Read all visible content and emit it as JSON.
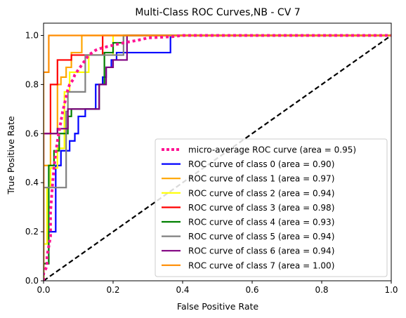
{
  "chart_data": {
    "type": "line",
    "title": "Multi-Class ROC Curves,NB - CV 7",
    "xlabel": "False Positive Rate",
    "ylabel": "True Positive Rate",
    "xlim": [
      0.0,
      1.0
    ],
    "ylim": [
      0.0,
      1.05
    ],
    "xticks": [
      "0.0",
      "0.2",
      "0.4",
      "0.6",
      "0.8",
      "1.0"
    ],
    "yticks": [
      "0.0",
      "0.2",
      "0.4",
      "0.6",
      "0.8",
      "1.0"
    ],
    "grid": false,
    "legend_position": "lower-right",
    "series": [
      {
        "name": "micro-average ROC curve (area = 0.95)",
        "color": "#ff1493",
        "style": "dotted",
        "points": [
          [
            0,
            0
          ],
          [
            0,
            0.03
          ],
          [
            0.01,
            0.06
          ],
          [
            0.01,
            0.1
          ],
          [
            0.02,
            0.18
          ],
          [
            0.02,
            0.28
          ],
          [
            0.025,
            0.38
          ],
          [
            0.03,
            0.46
          ],
          [
            0.035,
            0.52
          ],
          [
            0.04,
            0.57
          ],
          [
            0.045,
            0.61
          ],
          [
            0.05,
            0.65
          ],
          [
            0.055,
            0.69
          ],
          [
            0.06,
            0.72
          ],
          [
            0.065,
            0.75
          ],
          [
            0.07,
            0.78
          ],
          [
            0.075,
            0.8
          ],
          [
            0.085,
            0.82
          ],
          [
            0.09,
            0.84
          ],
          [
            0.1,
            0.86
          ],
          [
            0.11,
            0.88
          ],
          [
            0.12,
            0.9
          ],
          [
            0.13,
            0.92
          ],
          [
            0.15,
            0.94
          ],
          [
            0.17,
            0.95
          ],
          [
            0.2,
            0.96
          ],
          [
            0.23,
            0.97
          ],
          [
            0.27,
            0.98
          ],
          [
            0.3,
            0.99
          ],
          [
            0.37,
            0.995
          ],
          [
            0.4,
            1.0
          ],
          [
            1.0,
            1.0
          ]
        ]
      },
      {
        "name": "ROC curve of class 0 (area = 0.90)",
        "color": "#0000ff",
        "style": "solid",
        "points": [
          [
            0,
            0
          ],
          [
            0,
            0.07
          ],
          [
            0.015,
            0.07
          ],
          [
            0.015,
            0.2
          ],
          [
            0.035,
            0.2
          ],
          [
            0.035,
            0.47
          ],
          [
            0.05,
            0.47
          ],
          [
            0.05,
            0.53
          ],
          [
            0.075,
            0.53
          ],
          [
            0.075,
            0.57
          ],
          [
            0.09,
            0.57
          ],
          [
            0.09,
            0.6
          ],
          [
            0.1,
            0.6
          ],
          [
            0.1,
            0.67
          ],
          [
            0.12,
            0.67
          ],
          [
            0.12,
            0.7
          ],
          [
            0.15,
            0.7
          ],
          [
            0.15,
            0.8
          ],
          [
            0.17,
            0.8
          ],
          [
            0.17,
            0.83
          ],
          [
            0.18,
            0.83
          ],
          [
            0.18,
            0.87
          ],
          [
            0.195,
            0.87
          ],
          [
            0.195,
            0.9
          ],
          [
            0.21,
            0.9
          ],
          [
            0.21,
            0.93
          ],
          [
            0.365,
            0.93
          ],
          [
            0.365,
            1.0
          ],
          [
            1.0,
            1.0
          ]
        ]
      },
      {
        "name": "ROC curve of class 1 (area = 0.97)",
        "color": "#ffa500",
        "style": "solid",
        "points": [
          [
            0,
            0
          ],
          [
            0,
            0.47
          ],
          [
            0.02,
            0.47
          ],
          [
            0.02,
            0.6
          ],
          [
            0.04,
            0.6
          ],
          [
            0.04,
            0.8
          ],
          [
            0.05,
            0.8
          ],
          [
            0.05,
            0.83
          ],
          [
            0.065,
            0.83
          ],
          [
            0.065,
            0.87
          ],
          [
            0.08,
            0.87
          ],
          [
            0.08,
            0.93
          ],
          [
            0.11,
            0.93
          ],
          [
            0.11,
            1.0
          ],
          [
            1.0,
            1.0
          ]
        ]
      },
      {
        "name": "ROC curve of class 2 (area = 0.94)",
        "color": "#ffff00",
        "style": "solid",
        "points": [
          [
            0,
            0
          ],
          [
            0,
            0.15
          ],
          [
            0.01,
            0.15
          ],
          [
            0.01,
            0.38
          ],
          [
            0.02,
            0.38
          ],
          [
            0.02,
            0.46
          ],
          [
            0.04,
            0.46
          ],
          [
            0.04,
            0.54
          ],
          [
            0.06,
            0.54
          ],
          [
            0.06,
            0.77
          ],
          [
            0.075,
            0.77
          ],
          [
            0.075,
            0.85
          ],
          [
            0.13,
            0.85
          ],
          [
            0.13,
            0.92
          ],
          [
            0.2,
            0.92
          ],
          [
            0.2,
            1.0
          ],
          [
            1.0,
            1.0
          ]
        ]
      },
      {
        "name": "ROC curve of class 3 (area = 0.98)",
        "color": "#ff0000",
        "style": "solid",
        "points": [
          [
            0,
            0
          ],
          [
            0,
            0.6
          ],
          [
            0.02,
            0.6
          ],
          [
            0.02,
            0.8
          ],
          [
            0.04,
            0.8
          ],
          [
            0.04,
            0.9
          ],
          [
            0.08,
            0.9
          ],
          [
            0.08,
            0.92
          ],
          [
            0.17,
            0.92
          ],
          [
            0.17,
            1.0
          ],
          [
            1.0,
            1.0
          ]
        ]
      },
      {
        "name": "ROC curve of class 4 (area = 0.93)",
        "color": "#008000",
        "style": "solid",
        "points": [
          [
            0,
            0
          ],
          [
            0,
            0.07
          ],
          [
            0.015,
            0.07
          ],
          [
            0.015,
            0.47
          ],
          [
            0.03,
            0.47
          ],
          [
            0.03,
            0.53
          ],
          [
            0.045,
            0.53
          ],
          [
            0.045,
            0.6
          ],
          [
            0.07,
            0.6
          ],
          [
            0.07,
            0.67
          ],
          [
            0.08,
            0.67
          ],
          [
            0.08,
            0.7
          ],
          [
            0.16,
            0.7
          ],
          [
            0.16,
            0.8
          ],
          [
            0.175,
            0.8
          ],
          [
            0.175,
            0.93
          ],
          [
            0.2,
            0.93
          ],
          [
            0.2,
            0.97
          ],
          [
            0.23,
            0.97
          ],
          [
            0.23,
            1.0
          ],
          [
            1.0,
            1.0
          ]
        ]
      },
      {
        "name": "ROC curve of class 5 (area = 0.94)",
        "color": "#808080",
        "style": "solid",
        "points": [
          [
            0,
            0
          ],
          [
            0,
            0.38
          ],
          [
            0.065,
            0.38
          ],
          [
            0.065,
            0.69
          ],
          [
            0.07,
            0.69
          ],
          [
            0.07,
            0.77
          ],
          [
            0.12,
            0.77
          ],
          [
            0.12,
            0.92
          ],
          [
            0.23,
            0.92
          ],
          [
            0.23,
            1.0
          ],
          [
            1.0,
            1.0
          ]
        ]
      },
      {
        "name": "ROC curve of class 6 (area = 0.94)",
        "color": "#800080",
        "style": "solid",
        "points": [
          [
            0,
            0
          ],
          [
            0,
            0.6
          ],
          [
            0.04,
            0.6
          ],
          [
            0.04,
            0.62
          ],
          [
            0.07,
            0.62
          ],
          [
            0.07,
            0.7
          ],
          [
            0.16,
            0.7
          ],
          [
            0.16,
            0.8
          ],
          [
            0.18,
            0.8
          ],
          [
            0.18,
            0.87
          ],
          [
            0.2,
            0.87
          ],
          [
            0.2,
            0.9
          ],
          [
            0.24,
            0.9
          ],
          [
            0.24,
            1.0
          ],
          [
            1.0,
            1.0
          ]
        ]
      },
      {
        "name": "ROC curve of class 7 (area = 1.00)",
        "color": "#ff8c00",
        "style": "solid",
        "points": [
          [
            0,
            0
          ],
          [
            0,
            0.85
          ],
          [
            0.015,
            0.85
          ],
          [
            0.015,
            1.0
          ],
          [
            1.0,
            1.0
          ]
        ]
      }
    ],
    "reference_line": {
      "color": "#000000",
      "style": "dashed",
      "points": [
        [
          0,
          0
        ],
        [
          1,
          1
        ]
      ]
    }
  }
}
